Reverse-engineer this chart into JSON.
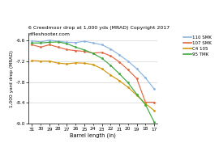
{
  "title_line1": "6 Creedmoor drop at 1,000 yds (MRAD) Copyright 2017",
  "title_line2": "rifleshooter.com",
  "xlabel": "Barrel length (in)",
  "ylabel": "1,000 yard drop (MRAD)",
  "x_major": [
    31,
    29,
    27,
    25,
    23,
    21,
    19,
    17
  ],
  "x_minor": [
    30,
    28,
    26,
    24,
    22,
    20,
    18
  ],
  "xlim": [
    16.6,
    31.4
  ],
  "ylim": [
    -9.0,
    -6.4
  ],
  "yticks": [
    -9.0,
    -8.4,
    -7.8,
    -7.2,
    -6.6
  ],
  "series": {
    "110 SMK": {
      "color": "#8ab4e0",
      "x": [
        31,
        30,
        29,
        28,
        27,
        26,
        25,
        24,
        23,
        22,
        21,
        20,
        19,
        18,
        17
      ],
      "y": [
        -6.62,
        -6.65,
        -6.6,
        -6.63,
        -6.66,
        -6.67,
        -6.63,
        -6.68,
        -6.73,
        -6.85,
        -7.02,
        -7.2,
        -7.42,
        -7.68,
        -8.0
      ]
    },
    "107 SMK": {
      "color": "#e06840",
      "x": [
        31,
        30,
        29,
        28,
        27,
        26,
        25,
        24,
        23,
        22,
        21,
        20,
        19,
        18,
        17
      ],
      "y": [
        -6.73,
        -6.8,
        -6.73,
        -6.8,
        -6.87,
        -6.9,
        -6.92,
        -6.97,
        -6.95,
        -7.05,
        -7.22,
        -7.45,
        -7.7,
        -8.38,
        -8.38
      ]
    },
    "C4 105": {
      "color": "#d4980a",
      "x": [
        31,
        30,
        29,
        28,
        27,
        26,
        25,
        24,
        23,
        22,
        21,
        20,
        19,
        18,
        17
      ],
      "y": [
        -7.18,
        -7.2,
        -7.2,
        -7.26,
        -7.28,
        -7.25,
        -7.26,
        -7.3,
        -7.42,
        -7.6,
        -7.76,
        -7.95,
        -8.18,
        -8.42,
        -8.62
      ]
    },
    "95 TMK": {
      "color": "#40a840",
      "x": [
        31,
        30,
        29,
        28,
        27,
        26,
        25,
        24,
        23,
        22,
        21,
        20,
        19,
        18,
        17
      ],
      "y": [
        -6.68,
        -6.68,
        -6.66,
        -6.65,
        -6.7,
        -6.8,
        -6.88,
        -6.98,
        -7.12,
        -7.32,
        -7.56,
        -7.82,
        -8.15,
        -8.45,
        -8.95
      ]
    }
  }
}
